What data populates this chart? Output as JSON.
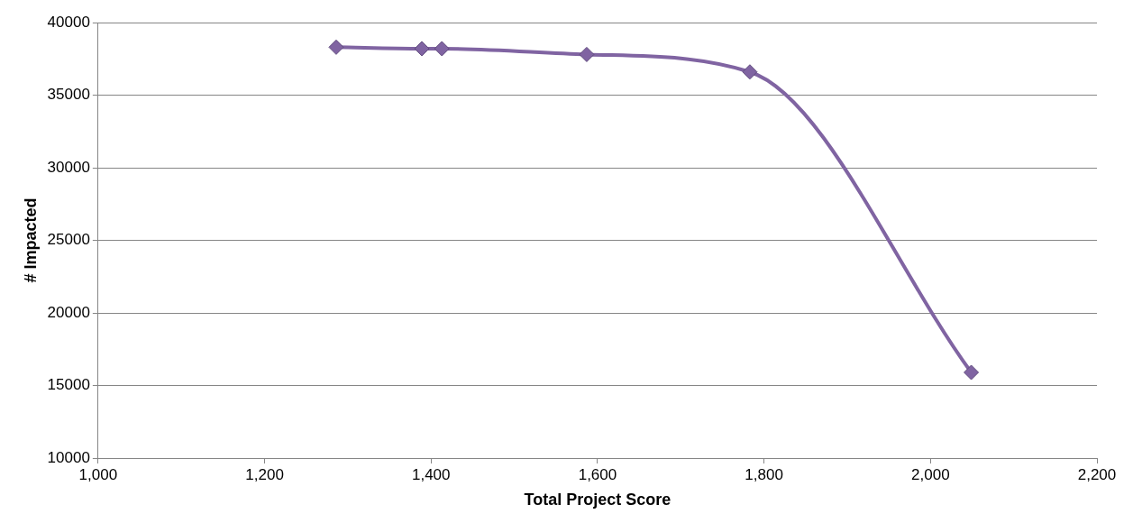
{
  "chart_data": {
    "type": "line",
    "xlabel": "Total Project Score",
    "ylabel": "# Impacted",
    "series": [
      {
        "color": "#8064a2",
        "x": [
          1286,
          1389,
          1413,
          1587,
          1783,
          2049
        ],
        "values": [
          38300,
          38200,
          38200,
          37800,
          36600,
          15900
        ]
      }
    ],
    "marker": "diamond",
    "line_style": "solid",
    "grid": "y",
    "legend": false,
    "xlim": [
      1000,
      2200
    ],
    "xticks": [
      {
        "value": 1000,
        "label": "1,000"
      },
      {
        "value": 1200,
        "label": "1,200"
      },
      {
        "value": 1400,
        "label": "1,400"
      },
      {
        "value": 1600,
        "label": "1,600"
      },
      {
        "value": 1800,
        "label": "1,800"
      },
      {
        "value": 2000,
        "label": "2,000"
      },
      {
        "value": 2200,
        "label": "2,200"
      }
    ],
    "ylim": [
      10000,
      40000
    ],
    "yticks": [
      10000,
      15000,
      20000,
      25000,
      30000,
      35000,
      40000
    ]
  }
}
